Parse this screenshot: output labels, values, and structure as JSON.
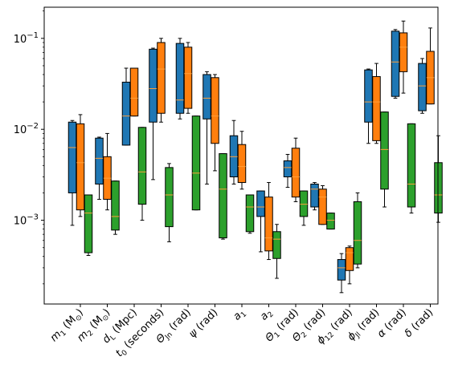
{
  "chart_data": {
    "type": "box",
    "y_scale": "log",
    "ylim": [
      0.00012,
      0.22
    ],
    "grid": false,
    "legend": "none",
    "title": "",
    "xlabel": "",
    "ylabel": "",
    "y_ticks": [
      {
        "value": 0.001,
        "base": "10",
        "exp": "−3"
      },
      {
        "value": 0.01,
        "base": "10",
        "exp": "−2"
      },
      {
        "value": 0.1,
        "base": "10",
        "exp": "−1"
      }
    ],
    "categories": [
      {
        "main": "m",
        "sub": "1",
        "rest": " (M",
        "rest_sub": "⊙",
        "end": ")"
      },
      {
        "main": "m",
        "sub": "2",
        "rest": " (M",
        "rest_sub": "⊙",
        "end": ")"
      },
      {
        "main": "d",
        "sub": "L",
        "rest": " (Mpc)",
        "rest_sub": "",
        "end": ""
      },
      {
        "main": "t",
        "sub": "0",
        "rest": " (seconds)",
        "rest_sub": "",
        "end": ""
      },
      {
        "main": "Θ",
        "sub": "Jn",
        "rest": " (rad)",
        "rest_sub": "",
        "end": ""
      },
      {
        "main": "ψ",
        "sub": "",
        "rest": " (rad)",
        "rest_sub": "",
        "end": ""
      },
      {
        "main": "a",
        "sub": "1",
        "rest": "",
        "rest_sub": "",
        "end": ""
      },
      {
        "main": "a",
        "sub": "2",
        "rest": "",
        "rest_sub": "",
        "end": ""
      },
      {
        "main": "Θ",
        "sub": "1",
        "rest": " (rad)",
        "rest_sub": "",
        "end": ""
      },
      {
        "main": "Θ",
        "sub": "2",
        "rest": " (rad)",
        "rest_sub": "",
        "end": ""
      },
      {
        "main": "ϕ",
        "sub": "12",
        "rest": " (rad)",
        "rest_sub": "",
        "end": ""
      },
      {
        "main": "ϕ",
        "sub": "Jl",
        "rest": " (rad)",
        "rest_sub": "",
        "end": ""
      },
      {
        "main": "α",
        "sub": "",
        "rest": " (rad)",
        "rest_sub": "",
        "end": ""
      },
      {
        "main": "δ",
        "sub": "",
        "rest": " (rad)",
        "rest_sub": "",
        "end": ""
      }
    ],
    "series": [
      {
        "color": "#1f77b4",
        "boxes": [
          {
            "whislo": 0.00088,
            "q1": 0.002,
            "med": 0.0063,
            "q3": 0.012,
            "whishi": 0.0125
          },
          {
            "whislo": 0.0017,
            "q1": 0.0025,
            "med": 0.0048,
            "q3": 0.008,
            "whishi": 0.0082
          },
          {
            "whislo": 0.0067,
            "q1": 0.0067,
            "med": 0.014,
            "q3": 0.033,
            "whishi": 0.047
          },
          {
            "whislo": 0.0028,
            "q1": 0.012,
            "med": 0.028,
            "q3": 0.076,
            "whishi": 0.078
          },
          {
            "whislo": 0.013,
            "q1": 0.015,
            "med": 0.021,
            "q3": 0.088,
            "whishi": 0.1
          },
          {
            "whislo": 0.0025,
            "q1": 0.013,
            "med": 0.022,
            "q3": 0.04,
            "whishi": 0.043
          },
          {
            "whislo": 0.0025,
            "q1": 0.003,
            "med": 0.005,
            "q3": 0.0085,
            "whishi": 0.0125
          },
          {
            "whislo": 0.00045,
            "q1": 0.0011,
            "med": 0.0014,
            "q3": 0.0021,
            "whishi": 0.0021
          },
          {
            "whislo": 0.0023,
            "q1": 0.003,
            "med": 0.0038,
            "q3": 0.0045,
            "whishi": 0.0053
          },
          {
            "whislo": 0.0013,
            "q1": 0.0014,
            "med": 0.0022,
            "q3": 0.0025,
            "whishi": 0.0026
          },
          {
            "whislo": 0.00016,
            "q1": 0.00022,
            "med": 0.0003,
            "q3": 0.00037,
            "whishi": 0.00043
          },
          {
            "whislo": 0.007,
            "q1": 0.012,
            "med": 0.02,
            "q3": 0.045,
            "whishi": 0.046
          },
          {
            "whislo": 0.022,
            "q1": 0.023,
            "med": 0.055,
            "q3": 0.12,
            "whishi": 0.125
          },
          {
            "whislo": 0.015,
            "q1": 0.016,
            "med": 0.03,
            "q3": 0.053,
            "whishi": 0.06
          }
        ]
      },
      {
        "color": "#ff7f0e",
        "boxes": [
          {
            "whislo": 0.0011,
            "q1": 0.0013,
            "med": 0.0043,
            "q3": 0.0115,
            "whishi": 0.0145
          },
          {
            "whislo": 0.0013,
            "q1": 0.0017,
            "med": 0.0029,
            "q3": 0.005,
            "whishi": 0.009
          },
          {
            "whislo": 0.014,
            "q1": 0.014,
            "med": 0.022,
            "q3": 0.047,
            "whishi": 0.047
          },
          {
            "whislo": 0.012,
            "q1": 0.015,
            "med": 0.046,
            "q3": 0.09,
            "whishi": 0.1
          },
          {
            "whislo": 0.015,
            "q1": 0.017,
            "med": 0.041,
            "q3": 0.08,
            "whishi": 0.09
          },
          {
            "whislo": 0.0035,
            "q1": 0.007,
            "med": 0.014,
            "q3": 0.037,
            "whishi": 0.04
          },
          {
            "whislo": 0.0022,
            "q1": 0.0026,
            "med": 0.0039,
            "q3": 0.0068,
            "whishi": 0.0095
          },
          {
            "whislo": 0.00037,
            "q1": 0.00046,
            "med": 0.00064,
            "q3": 0.0018,
            "whishi": 0.0026
          },
          {
            "whislo": 0.0016,
            "q1": 0.0018,
            "med": 0.003,
            "q3": 0.0062,
            "whishi": 0.008
          },
          {
            "whislo": 0.0009,
            "q1": 0.0009,
            "med": 0.0018,
            "q3": 0.0022,
            "whishi": 0.0024
          },
          {
            "whislo": 0.0002,
            "q1": 0.00028,
            "med": 0.00044,
            "q3": 0.0005,
            "whishi": 0.00052
          },
          {
            "whislo": 0.007,
            "q1": 0.0075,
            "med": 0.02,
            "q3": 0.038,
            "whishi": 0.053
          },
          {
            "whislo": 0.025,
            "q1": 0.043,
            "med": 0.08,
            "q3": 0.115,
            "whishi": 0.155
          },
          {
            "whislo": 0.019,
            "q1": 0.019,
            "med": 0.037,
            "q3": 0.072,
            "whishi": 0.13
          }
        ]
      },
      {
        "color": "#2ca02c",
        "boxes": [
          {
            "whislo": 0.00041,
            "q1": 0.00044,
            "med": 0.0012,
            "q3": 0.0019,
            "whishi": 0.0019
          },
          {
            "whislo": 0.0007,
            "q1": 0.00078,
            "med": 0.0011,
            "q3": 0.0027,
            "whishi": 0.0027
          },
          {
            "whislo": 0.001,
            "q1": 0.0015,
            "med": 0.0034,
            "q3": 0.0105,
            "whishi": 0.0105
          },
          {
            "whislo": 0.00058,
            "q1": 0.00085,
            "med": 0.0019,
            "q3": 0.0038,
            "whishi": 0.0042
          },
          {
            "whislo": 0.0013,
            "q1": 0.0013,
            "med": 0.0033,
            "q3": 0.014,
            "whishi": 0.014
          },
          {
            "whislo": 0.00062,
            "q1": 0.00064,
            "med": 0.0022,
            "q3": 0.0054,
            "whishi": 0.0054
          },
          {
            "whislo": 0.00072,
            "q1": 0.00075,
            "med": 0.0014,
            "q3": 0.0019,
            "whishi": 0.0019
          },
          {
            "whislo": 0.00023,
            "q1": 0.00038,
            "med": 0.00062,
            "q3": 0.00075,
            "whishi": 0.0009
          },
          {
            "whislo": 0.00088,
            "q1": 0.0011,
            "med": 0.0015,
            "q3": 0.0021,
            "whishi": 0.0021
          },
          {
            "whislo": 0.0008,
            "q1": 0.0008,
            "med": 0.001,
            "q3": 0.0012,
            "whishi": 0.0012
          },
          {
            "whislo": 0.0003,
            "q1": 0.00033,
            "med": 0.0006,
            "q3": 0.0016,
            "whishi": 0.002
          },
          {
            "whislo": 0.0014,
            "q1": 0.0022,
            "med": 0.006,
            "q3": 0.0155,
            "whishi": 0.0155
          },
          {
            "whislo": 0.0012,
            "q1": 0.0014,
            "med": 0.0025,
            "q3": 0.0115,
            "whishi": 0.0115
          },
          {
            "whislo": 0.00095,
            "q1": 0.0012,
            "med": 0.0019,
            "q3": 0.0043,
            "whishi": 0.0085
          }
        ]
      }
    ]
  }
}
